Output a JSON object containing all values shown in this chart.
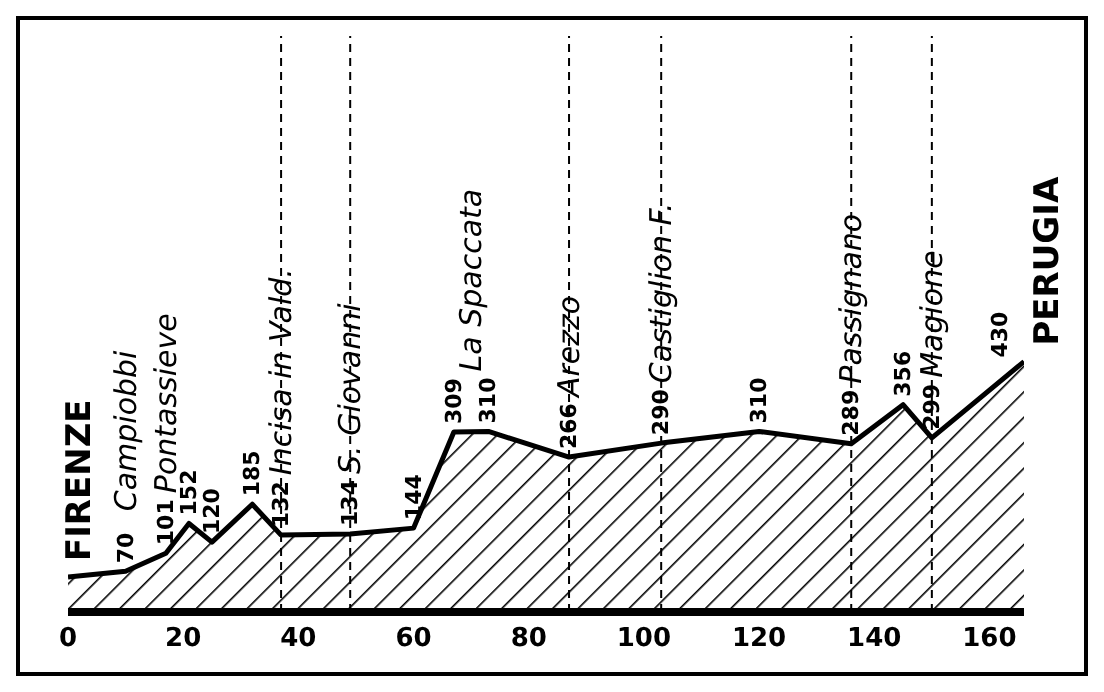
{
  "chart_data": {
    "type": "area",
    "x": [
      0,
      10,
      17,
      21,
      25,
      32,
      37,
      49,
      60,
      67,
      73,
      87,
      103,
      120,
      136,
      145,
      150,
      166
    ],
    "values": [
      60,
      70,
      101,
      152,
      120,
      185,
      132,
      134,
      144,
      309,
      310,
      266,
      290,
      310,
      289,
      356,
      299,
      430
    ],
    "value_labels": [
      null,
      "70",
      "101",
      "152",
      "120",
      "185",
      "132",
      "134",
      "144",
      "309",
      "310",
      "266",
      "290",
      "310",
      "289",
      "356",
      "299",
      "430"
    ],
    "color": "#000000",
    "xlim": [
      0,
      166
    ],
    "xticks": [
      0,
      20,
      40,
      60,
      80,
      100,
      120,
      140,
      160
    ],
    "annotations": [
      {
        "text": "FIRENZE",
        "x": 0,
        "y": 60
      },
      {
        "text": "Campiobbi",
        "x": 10,
        "y": 70
      },
      {
        "text": "Pontassieve",
        "x": 17,
        "y": 101
      },
      {
        "text": "Incisa in Vald.",
        "x": 37,
        "y": 132
      },
      {
        "text": "S. Giovanni",
        "x": 49,
        "y": 134
      },
      {
        "text": "La Spaccata",
        "x": 70,
        "y": 310
      },
      {
        "text": "Arezzo",
        "x": 87,
        "y": 266
      },
      {
        "text": "Castiglion F.",
        "x": 103,
        "y": 290
      },
      {
        "text": "Passignano",
        "x": 136,
        "y": 289
      },
      {
        "text": "Magione",
        "x": 150,
        "y": 299
      },
      {
        "text": "PERUGIA",
        "x": 166,
        "y": 430
      }
    ],
    "ref_lines": [
      {
        "axis": "x",
        "value": 37,
        "color": "#000000",
        "line_style": "dashed"
      },
      {
        "axis": "x",
        "value": 49,
        "color": "#000000",
        "line_style": "dashed"
      },
      {
        "axis": "x",
        "value": 87,
        "color": "#000000",
        "line_style": "dashed"
      },
      {
        "axis": "x",
        "value": 103,
        "color": "#000000",
        "line_style": "dashed"
      },
      {
        "axis": "x",
        "value": 136,
        "color": "#000000",
        "line_style": "dashed"
      },
      {
        "axis": "x",
        "value": 150,
        "color": "#000000",
        "line_style": "dashed"
      }
    ],
    "grid": false,
    "legend": false
  }
}
